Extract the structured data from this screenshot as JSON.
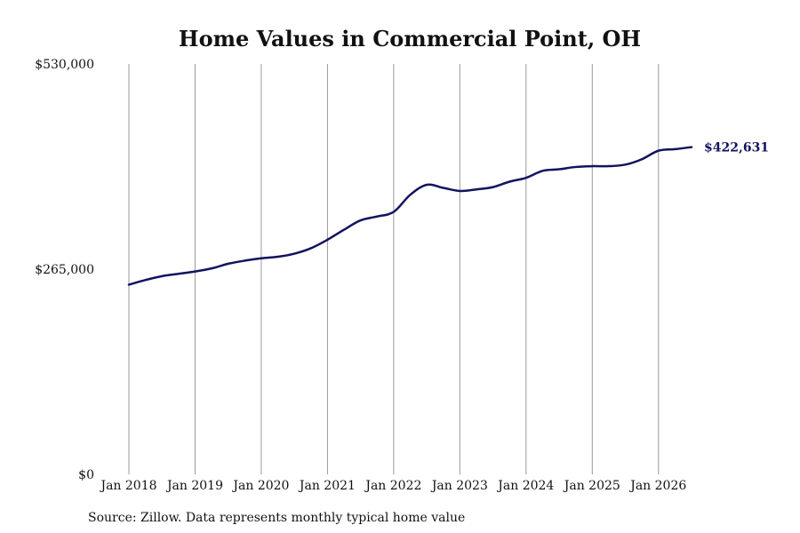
{
  "chart_data": {
    "type": "line",
    "title": "Home Values in Commercial Point, OH",
    "source": "Source: Zillow. Data represents monthly typical home value",
    "xlabel": "",
    "ylabel": "",
    "ylim": [
      0,
      530000
    ],
    "y_ticks": [
      {
        "value": 0,
        "label": "$0"
      },
      {
        "value": 265000,
        "label": "$265,000"
      },
      {
        "value": 530000,
        "label": "$530,000"
      }
    ],
    "x_ticks": [
      {
        "value": 2018.0,
        "label": "Jan 2018"
      },
      {
        "value": 2019.0,
        "label": "Jan 2019"
      },
      {
        "value": 2020.0,
        "label": "Jan 2020"
      },
      {
        "value": 2021.0,
        "label": "Jan 2021"
      },
      {
        "value": 2022.0,
        "label": "Jan 2022"
      },
      {
        "value": 2023.0,
        "label": "Jan 2023"
      },
      {
        "value": 2024.0,
        "label": "Jan 2024"
      },
      {
        "value": 2025.0,
        "label": "Jan 2025"
      },
      {
        "value": 2026.0,
        "label": "Jan 2026"
      }
    ],
    "xlim": [
      2018.0,
      2026.5
    ],
    "grid": "vertical",
    "series": [
      {
        "color": "#12135e",
        "end_label": "$422,631",
        "points": [
          [
            2018.0,
            245000
          ],
          [
            2018.25,
            251000
          ],
          [
            2018.5,
            256000
          ],
          [
            2018.75,
            259000
          ],
          [
            2019.0,
            262000
          ],
          [
            2019.25,
            266000
          ],
          [
            2019.5,
            272000
          ],
          [
            2019.75,
            276000
          ],
          [
            2020.0,
            279000
          ],
          [
            2020.25,
            281000
          ],
          [
            2020.5,
            285000
          ],
          [
            2020.75,
            292000
          ],
          [
            2021.0,
            303000
          ],
          [
            2021.25,
            316000
          ],
          [
            2021.5,
            328000
          ],
          [
            2021.75,
            333000
          ],
          [
            2022.0,
            339000
          ],
          [
            2022.25,
            361000
          ],
          [
            2022.5,
            374000
          ],
          [
            2022.75,
            370000
          ],
          [
            2023.0,
            366000
          ],
          [
            2023.25,
            368000
          ],
          [
            2023.5,
            371000
          ],
          [
            2023.75,
            378000
          ],
          [
            2024.0,
            383000
          ],
          [
            2024.25,
            392000
          ],
          [
            2024.5,
            394000
          ],
          [
            2024.75,
            397000
          ],
          [
            2025.0,
            398000
          ],
          [
            2025.25,
            398000
          ],
          [
            2025.5,
            400000
          ],
          [
            2025.75,
            407000
          ],
          [
            2026.0,
            418000
          ],
          [
            2026.25,
            420000
          ],
          [
            2026.5,
            422631
          ]
        ]
      }
    ]
  },
  "colors": {
    "line": "#12135e",
    "grid": "#9a9a9a",
    "text": "#111111"
  }
}
